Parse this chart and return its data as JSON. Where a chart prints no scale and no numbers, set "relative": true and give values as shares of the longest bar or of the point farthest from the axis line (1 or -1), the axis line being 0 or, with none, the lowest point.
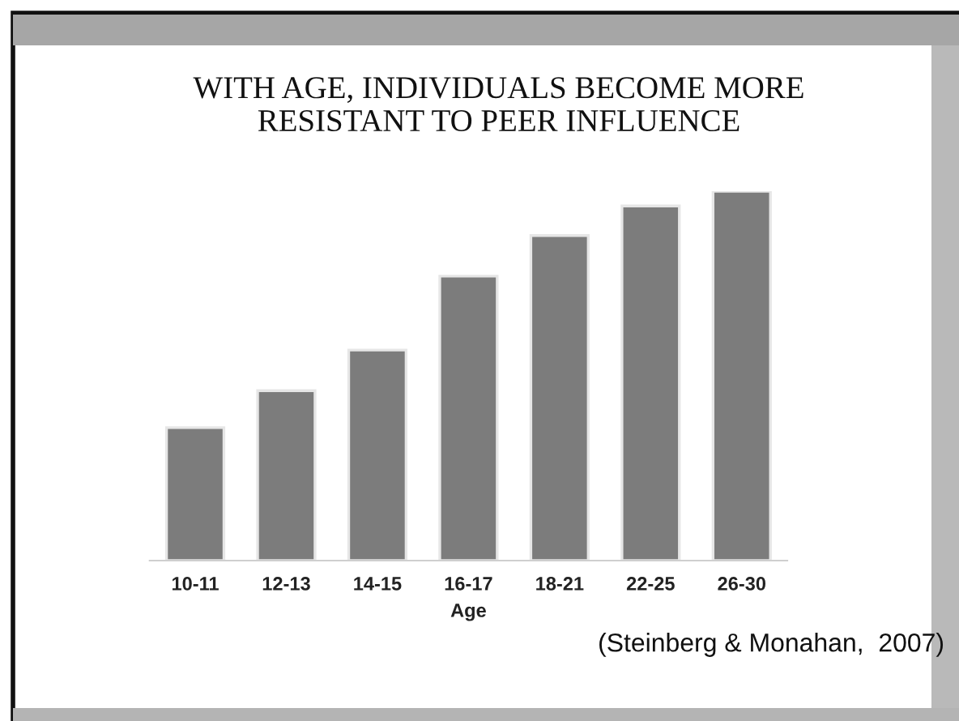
{
  "chart_data": {
    "type": "bar",
    "relative": true,
    "title": "WITH AGE, INDIVIDUALS BECOME MORE\nRESISTANT TO PEER INFLUENCE",
    "xlabel": "Age",
    "categories": [
      "10-11",
      "12-13",
      "14-15",
      "16-17",
      "18-21",
      "22-25",
      "26-30"
    ],
    "values": [
      0.36,
      0.46,
      0.57,
      0.77,
      0.88,
      0.96,
      1
    ],
    "color": "#7c7c7c",
    "annotations": [
      "(Steinberg & Monahan,  2007)"
    ]
  }
}
